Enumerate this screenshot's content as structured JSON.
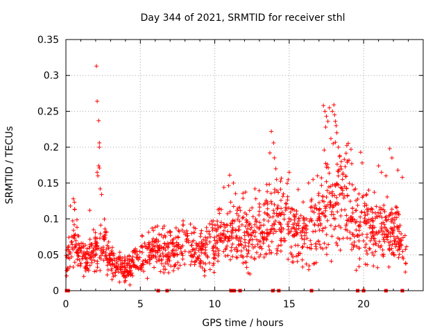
{
  "chart_data": {
    "type": "scatter",
    "title": "Day 344 of 2021, SRMTID for receiver sthl",
    "xlabel": "GPS time / hours",
    "ylabel": "SRMTID / TECUs",
    "xlim": [
      0,
      24
    ],
    "ylim": [
      0,
      0.35
    ],
    "x_ticks": [
      0,
      5,
      10,
      15,
      20
    ],
    "x_tick_labels": [
      "0",
      "5",
      "10",
      "15",
      "20"
    ],
    "y_ticks": [
      0,
      0.05,
      0.1,
      0.15,
      0.2,
      0.25,
      0.3,
      0.35
    ],
    "y_tick_labels": [
      "0",
      "0.05",
      "0.1",
      "0.15",
      "0.2",
      "0.25",
      "0.3",
      "0.35"
    ],
    "grid": true,
    "marker": "plus",
    "series_color": "#ff0000",
    "background_level": [
      [
        0.0,
        0.035
      ],
      [
        0.3,
        0.06
      ],
      [
        0.6,
        0.085
      ],
      [
        0.9,
        0.05
      ],
      [
        1.5,
        0.045
      ],
      [
        2.2,
        0.06
      ],
      [
        2.6,
        0.065
      ],
      [
        3.0,
        0.04
      ],
      [
        4.0,
        0.03
      ],
      [
        4.8,
        0.045
      ],
      [
        6.0,
        0.055
      ],
      [
        7.0,
        0.06
      ],
      [
        8.0,
        0.06
      ],
      [
        9.0,
        0.055
      ],
      [
        10.0,
        0.065
      ],
      [
        10.8,
        0.09
      ],
      [
        11.5,
        0.08
      ],
      [
        12.5,
        0.08
      ],
      [
        13.5,
        0.09
      ],
      [
        14.2,
        0.095
      ],
      [
        14.8,
        0.1
      ],
      [
        15.5,
        0.085
      ],
      [
        16.2,
        0.075
      ],
      [
        17.0,
        0.1
      ],
      [
        17.6,
        0.12
      ],
      [
        18.3,
        0.13
      ],
      [
        19.0,
        0.125
      ],
      [
        19.6,
        0.095
      ],
      [
        20.5,
        0.085
      ],
      [
        21.5,
        0.085
      ],
      [
        22.3,
        0.075
      ],
      [
        22.9,
        0.05
      ]
    ],
    "points": [
      [
        2.05,
        0.313
      ],
      [
        2.1,
        0.264
      ],
      [
        2.2,
        0.237
      ],
      [
        2.25,
        0.206
      ],
      [
        2.25,
        0.2
      ],
      [
        2.2,
        0.174
      ],
      [
        2.25,
        0.171
      ],
      [
        2.1,
        0.165
      ],
      [
        2.15,
        0.16
      ],
      [
        2.3,
        0.142
      ],
      [
        2.4,
        0.134
      ],
      [
        13.8,
        0.222
      ],
      [
        13.95,
        0.206
      ],
      [
        13.7,
        0.192
      ],
      [
        14.0,
        0.185
      ],
      [
        14.1,
        0.17
      ],
      [
        14.15,
        0.155
      ],
      [
        17.3,
        0.258
      ],
      [
        17.4,
        0.25
      ],
      [
        17.5,
        0.243
      ],
      [
        17.6,
        0.236
      ],
      [
        17.45,
        0.228
      ],
      [
        17.7,
        0.255
      ],
      [
        17.9,
        0.25
      ],
      [
        18.0,
        0.259
      ],
      [
        18.05,
        0.245
      ],
      [
        18.1,
        0.236
      ],
      [
        18.15,
        0.23
      ],
      [
        18.2,
        0.22
      ],
      [
        17.8,
        0.212
      ],
      [
        17.95,
        0.205
      ],
      [
        18.3,
        0.2
      ],
      [
        17.35,
        0.196
      ],
      [
        18.4,
        0.188
      ],
      [
        18.5,
        0.18
      ],
      [
        19.8,
        0.193
      ],
      [
        19.9,
        0.178
      ],
      [
        21.0,
        0.174
      ],
      [
        21.2,
        0.165
      ],
      [
        21.5,
        0.16
      ],
      [
        21.75,
        0.198
      ],
      [
        21.9,
        0.185
      ],
      [
        22.3,
        0.168
      ],
      [
        22.6,
        0.158
      ],
      [
        11.0,
        0.161
      ],
      [
        11.25,
        0.15
      ],
      [
        0.5,
        0.128
      ],
      [
        0.3,
        0.118
      ],
      [
        1.6,
        0.112
      ],
      [
        12.7,
        0.142
      ],
      [
        13.5,
        0.148
      ],
      [
        15.6,
        0.141
      ],
      [
        16.3,
        0.15
      ],
      [
        16.9,
        0.16
      ],
      [
        15.0,
        0.165
      ],
      [
        18.7,
        0.183
      ],
      [
        19.2,
        0.177
      ],
      [
        4.0,
        0.014
      ],
      [
        3.6,
        0.012
      ],
      [
        3.2,
        0.02
      ],
      [
        16.7,
        0.038
      ],
      [
        16.6,
        0.155
      ],
      [
        15.9,
        0.033
      ],
      [
        15.2,
        0.04
      ],
      [
        22.8,
        0.026
      ],
      [
        21.7,
        0.033
      ],
      [
        9.3,
        0.028
      ],
      [
        4.3,
        0.008
      ],
      [
        1.2,
        0.02
      ],
      [
        6.9,
        0.025
      ]
    ],
    "zero_markers": [
      0.05,
      0.15,
      6.2,
      6.8,
      11.1,
      11.3,
      11.7,
      13.9,
      14.3,
      16.5,
      19.6,
      20.0,
      21.5,
      22.6
    ]
  }
}
